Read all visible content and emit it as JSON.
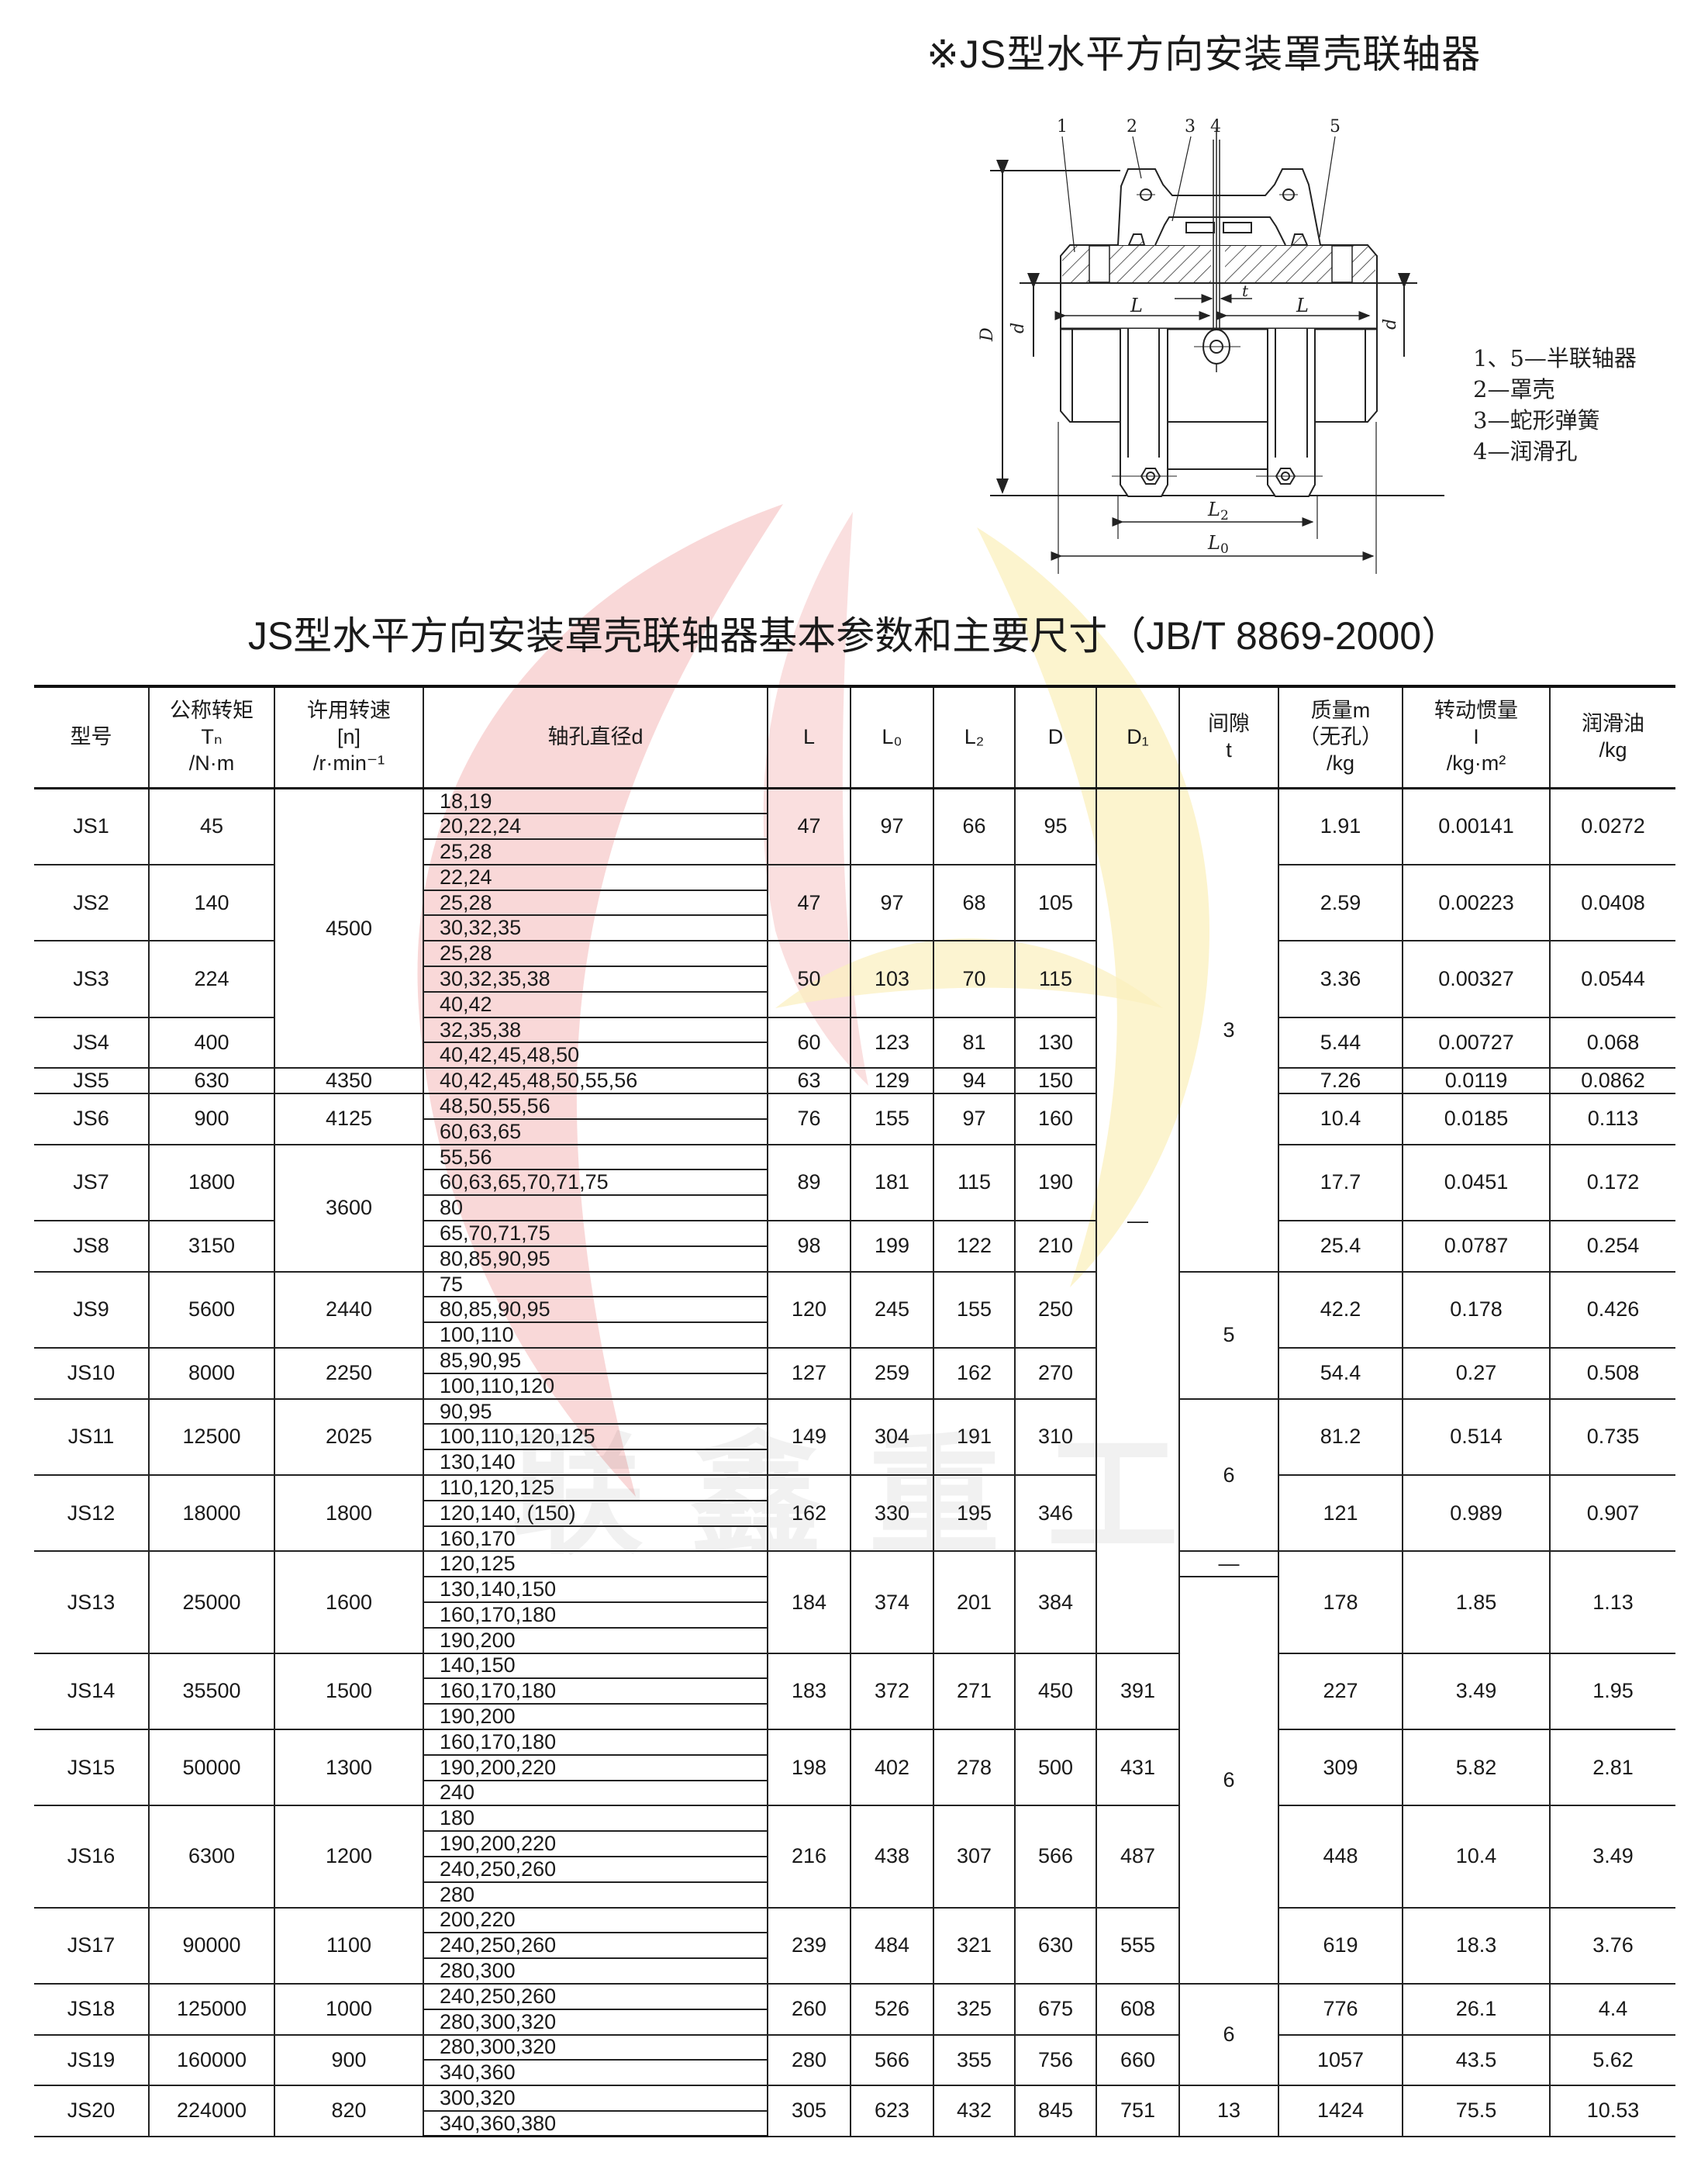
{
  "title": "※JS型水平方向安装罩壳联轴器",
  "caption": "JS型水平方向安装罩壳联轴器基本参数和主要尺寸（JB/T 8869-2000）",
  "watermark": "联鑫重工",
  "diagram": {
    "part_numbers": [
      "1",
      "2",
      "3",
      "4",
      "5"
    ],
    "dimension_labels": {
      "D": "D",
      "d": "d",
      "L": "L",
      "t": "t",
      "L2": "L",
      "L2_sub": "2",
      "L0": "L",
      "L0_sub": "0"
    },
    "legend": [
      "1、5—半联轴器",
      "2—罩壳",
      "3—蛇形弹簧",
      "4—润滑孔"
    ]
  },
  "table": {
    "headers": [
      {
        "lines": [
          "型号"
        ]
      },
      {
        "lines": [
          "公称转矩",
          "Tₙ",
          "/N·m"
        ]
      },
      {
        "lines": [
          "许用转速",
          "[n]",
          "/r·min⁻¹"
        ]
      },
      {
        "lines": [
          "轴孔直径d"
        ]
      },
      {
        "lines": [
          "L"
        ]
      },
      {
        "lines": [
          "L₀"
        ]
      },
      {
        "lines": [
          "L₂"
        ]
      },
      {
        "lines": [
          "D"
        ]
      },
      {
        "lines": [
          "D₁"
        ]
      },
      {
        "lines": [
          "间隙",
          "t"
        ]
      },
      {
        "lines": [
          "质量m",
          "（无孔）",
          "/kg"
        ]
      },
      {
        "lines": [
          "转动惯量",
          "I",
          "/kg·m²"
        ]
      },
      {
        "lines": [
          "润滑油",
          "/kg"
        ]
      }
    ],
    "models": [
      {
        "model": "JS1",
        "torque": "45",
        "d": [
          "18,19",
          "20,22,24",
          "25,28"
        ],
        "L": "47",
        "L0": "97",
        "L2": "66",
        "D": "95",
        "mass": "1.91",
        "inertia": "0.00141",
        "oil": "0.0272"
      },
      {
        "model": "JS2",
        "torque": "140",
        "d": [
          "22,24",
          "25,28",
          "30,32,35"
        ],
        "L": "47",
        "L0": "97",
        "L2": "68",
        "D": "105",
        "mass": "2.59",
        "inertia": "0.00223",
        "oil": "0.0408"
      },
      {
        "model": "JS3",
        "torque": "224",
        "d": [
          "25,28",
          "30,32,35,38",
          "40,42"
        ],
        "L": "50",
        "L0": "103",
        "L2": "70",
        "D": "115",
        "mass": "3.36",
        "inertia": "0.00327",
        "oil": "0.0544"
      },
      {
        "model": "JS4",
        "torque": "400",
        "d": [
          "32,35,38",
          "40,42,45,48,50"
        ],
        "L": "60",
        "L0": "123",
        "L2": "81",
        "D": "130",
        "mass": "5.44",
        "inertia": "0.00727",
        "oil": "0.068"
      },
      {
        "model": "JS5",
        "torque": "630",
        "d": [
          "40,42,45,48,50,55,56"
        ],
        "L": "63",
        "L0": "129",
        "L2": "94",
        "D": "150",
        "mass": "7.26",
        "inertia": "0.0119",
        "oil": "0.0862"
      },
      {
        "model": "JS6",
        "torque": "900",
        "d": [
          "48,50,55,56",
          "60,63,65"
        ],
        "L": "76",
        "L0": "155",
        "L2": "97",
        "D": "160",
        "mass": "10.4",
        "inertia": "0.0185",
        "oil": "0.113"
      },
      {
        "model": "JS7",
        "torque": "1800",
        "d": [
          "55,56",
          "60,63,65,70,71,75",
          "80"
        ],
        "L": "89",
        "L0": "181",
        "L2": "115",
        "D": "190",
        "mass": "17.7",
        "inertia": "0.0451",
        "oil": "0.172"
      },
      {
        "model": "JS8",
        "torque": "3150",
        "d": [
          "65,70,71,75",
          "80,85,90,95"
        ],
        "L": "98",
        "L0": "199",
        "L2": "122",
        "D": "210",
        "mass": "25.4",
        "inertia": "0.0787",
        "oil": "0.254"
      },
      {
        "model": "JS9",
        "torque": "5600",
        "d": [
          "75",
          "80,85,90,95",
          "100,110"
        ],
        "L": "120",
        "L0": "245",
        "L2": "155",
        "D": "250",
        "mass": "42.2",
        "inertia": "0.178",
        "oil": "0.426"
      },
      {
        "model": "JS10",
        "torque": "8000",
        "d": [
          "85,90,95",
          "100,110,120"
        ],
        "L": "127",
        "L0": "259",
        "L2": "162",
        "D": "270",
        "mass": "54.4",
        "inertia": "0.27",
        "oil": "0.508"
      },
      {
        "model": "JS11",
        "torque": "12500",
        "d": [
          "90,95",
          "100,110,120,125",
          "130,140"
        ],
        "L": "149",
        "L0": "304",
        "L2": "191",
        "D": "310",
        "mass": "81.2",
        "inertia": "0.514",
        "oil": "0.735"
      },
      {
        "model": "JS12",
        "torque": "18000",
        "d": [
          "110,120,125",
          "120,140, (150)",
          "160,170"
        ],
        "L": "162",
        "L0": "330",
        "L2": "195",
        "D": "346",
        "mass": "121",
        "inertia": "0.989",
        "oil": "0.907"
      },
      {
        "model": "JS13",
        "torque": "25000",
        "d": [
          "120,125",
          "130,140,150",
          "160,170,180",
          "190,200"
        ],
        "L": "184",
        "L0": "374",
        "L2": "201",
        "D": "384",
        "mass": "178",
        "inertia": "1.85",
        "oil": "1.13"
      },
      {
        "model": "JS14",
        "torque": "35500",
        "d": [
          "140,150",
          "160,170,180",
          "190,200"
        ],
        "L": "183",
        "L0": "372",
        "L2": "271",
        "D": "450",
        "mass": "227",
        "inertia": "3.49",
        "oil": "1.95"
      },
      {
        "model": "JS15",
        "torque": "50000",
        "d": [
          "160,170,180",
          "190,200,220",
          "240"
        ],
        "L": "198",
        "L0": "402",
        "L2": "278",
        "D": "500",
        "mass": "309",
        "inertia": "5.82",
        "oil": "2.81"
      },
      {
        "model": "JS16",
        "torque": "6300",
        "d": [
          "180",
          "190,200,220",
          "240,250,260",
          "280"
        ],
        "L": "216",
        "L0": "438",
        "L2": "307",
        "D": "566",
        "mass": "448",
        "inertia": "10.4",
        "oil": "3.49"
      },
      {
        "model": "JS17",
        "torque": "90000",
        "d": [
          "200,220",
          "240,250,260",
          "280,300"
        ],
        "L": "239",
        "L0": "484",
        "L2": "321",
        "D": "630",
        "mass": "619",
        "inertia": "18.3",
        "oil": "3.76"
      },
      {
        "model": "JS18",
        "torque": "125000",
        "d": [
          "240,250,260",
          "280,300,320"
        ],
        "L": "260",
        "L0": "526",
        "L2": "325",
        "D": "675",
        "mass": "776",
        "inertia": "26.1",
        "oil": "4.4"
      },
      {
        "model": "JS19",
        "torque": "160000",
        "d": [
          "280,300,320",
          "340,360"
        ],
        "L": "280",
        "L0": "566",
        "L2": "355",
        "D": "756",
        "mass": "1057",
        "inertia": "43.5",
        "oil": "5.62"
      },
      {
        "model": "JS20",
        "torque": "224000",
        "d": [
          "300,320",
          "340,360,380"
        ],
        "L": "305",
        "L0": "623",
        "L2": "432",
        "D": "845",
        "mass": "1424",
        "inertia": "75.5",
        "oil": "10.53"
      }
    ],
    "speed_groups": [
      {
        "value": "4500",
        "start": "JS1"
      },
      {
        "value": "4350",
        "start": "JS5"
      },
      {
        "value": "4125",
        "start": "JS6"
      },
      {
        "value": "3600",
        "start": "JS7"
      },
      {
        "value": "2440",
        "start": "JS9"
      },
      {
        "value": "2250",
        "start": "JS10"
      },
      {
        "value": "2025",
        "start": "JS11"
      },
      {
        "value": "1800",
        "start": "JS12"
      },
      {
        "value": "1600",
        "start": "JS13"
      },
      {
        "value": "1500",
        "start": "JS14"
      },
      {
        "value": "1300",
        "start": "JS15"
      },
      {
        "value": "1200",
        "start": "JS16"
      },
      {
        "value": "1100",
        "start": "JS17"
      },
      {
        "value": "1000",
        "start": "JS18"
      },
      {
        "value": "900",
        "start": "JS19"
      },
      {
        "value": "820",
        "start": "JS20"
      }
    ],
    "d1_groups": [
      {
        "value": "—",
        "start": "JS1"
      },
      {
        "value": "391",
        "start": "JS14"
      },
      {
        "value": "431",
        "start": "JS15"
      },
      {
        "value": "487",
        "start": "JS16"
      },
      {
        "value": "555",
        "start": "JS17"
      },
      {
        "value": "608",
        "start": "JS18"
      },
      {
        "value": "660",
        "start": "JS19"
      },
      {
        "value": "751",
        "start": "JS20"
      }
    ],
    "t_groups": [
      {
        "value": "3",
        "start": "JS1"
      },
      {
        "value": "5",
        "start": "JS9"
      },
      {
        "value": "6",
        "start": "JS11"
      },
      {
        "value": "—",
        "start": "JS13"
      },
      {
        "value": "6",
        "start": "JS13",
        "start_sub": 1
      },
      {
        "value": "6",
        "start": "JS18"
      },
      {
        "value": "13",
        "start": "JS20"
      }
    ]
  },
  "colors": {
    "watermark_red": "#f4b8b8",
    "watermark_yellow": "#fbf0bd",
    "line": "#222222"
  }
}
